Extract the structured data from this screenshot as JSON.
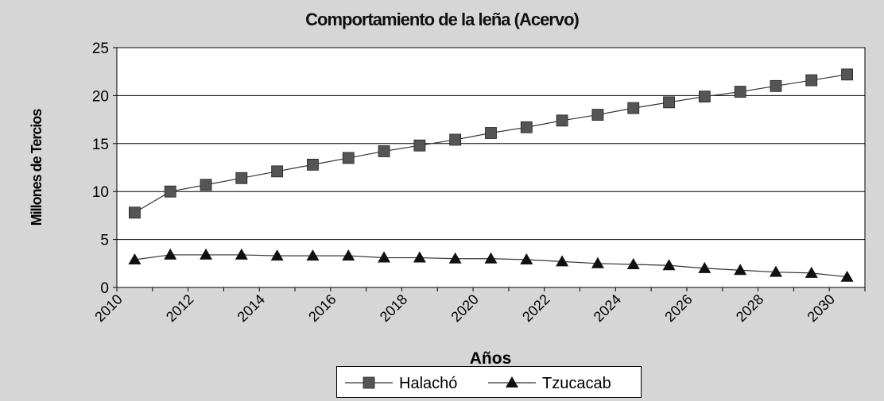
{
  "chart_data": {
    "type": "line",
    "title": "Comportamiento de la leña (Acervo)",
    "xlabel": "Años",
    "ylabel": "Millones de Tercios",
    "ylim": [
      0,
      25
    ],
    "yticks": [
      "0",
      "5",
      "10",
      "15",
      "20",
      "25"
    ],
    "xticks": [
      "2010",
      "2012",
      "2014",
      "2016",
      "2018",
      "2020",
      "2022",
      "2024",
      "2026",
      "2028",
      "2030"
    ],
    "grid": "horizontal",
    "legend_position": "bottom",
    "x": [
      2010,
      2011,
      2012,
      2013,
      2014,
      2015,
      2016,
      2017,
      2018,
      2019,
      2020,
      2021,
      2022,
      2023,
      2024,
      2025,
      2026,
      2027,
      2028,
      2029,
      2030
    ],
    "series": [
      {
        "name": "Halachó",
        "marker": "square",
        "color": "#555555",
        "values": [
          7.8,
          10.0,
          10.7,
          11.4,
          12.1,
          12.8,
          13.5,
          14.2,
          14.8,
          15.4,
          16.1,
          16.7,
          17.4,
          18.0,
          18.7,
          19.3,
          19.9,
          20.4,
          21.0,
          21.6,
          22.2
        ]
      },
      {
        "name": "Tzucacab",
        "marker": "triangle",
        "color": "#111111",
        "values": [
          2.9,
          3.4,
          3.4,
          3.4,
          3.3,
          3.3,
          3.3,
          3.1,
          3.1,
          3.0,
          3.0,
          2.9,
          2.7,
          2.5,
          2.4,
          2.3,
          2.0,
          1.8,
          1.6,
          1.5,
          1.1
        ]
      }
    ]
  }
}
